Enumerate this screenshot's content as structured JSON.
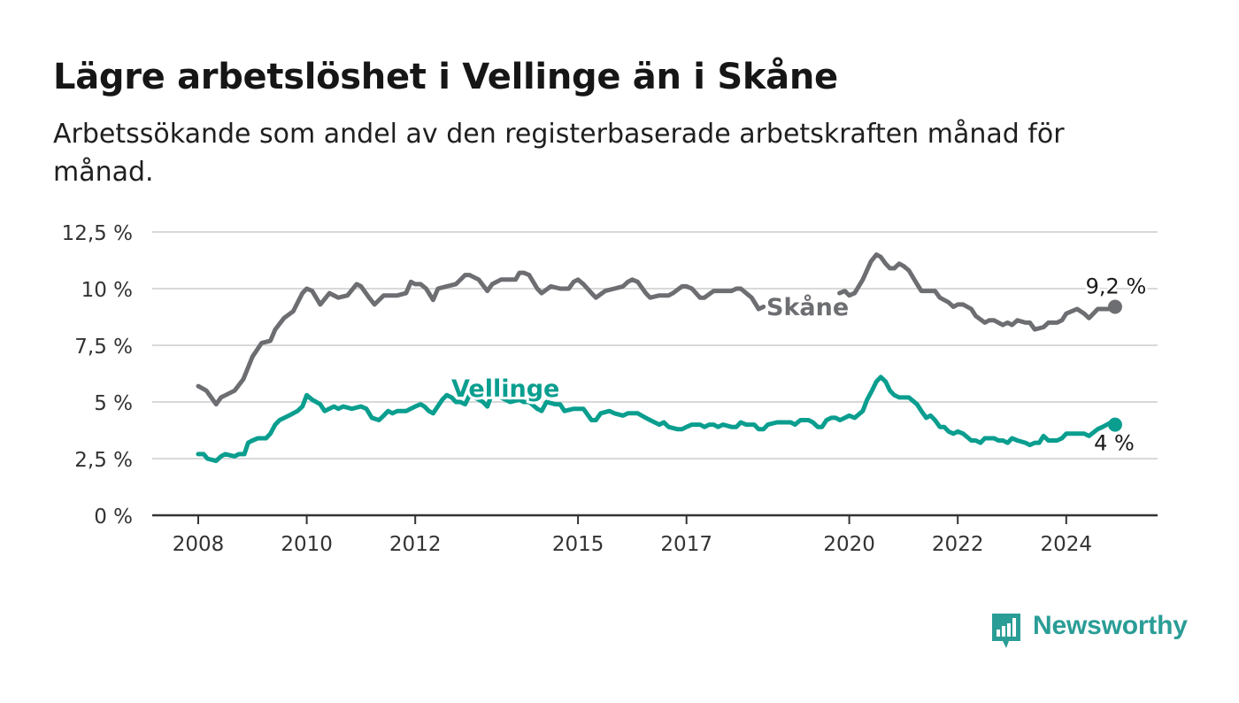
{
  "title": "Lägre arbetslöshet i Vellinge än i Skåne",
  "subtitle": "Arbetssökande som andel av den registerbaserade arbetskraften månad för månad.",
  "brand": {
    "name": "Newsworthy",
    "color": "#2a9d96",
    "icon": "bar-chart-speech-bubble-icon"
  },
  "chart_data": {
    "type": "line",
    "ylim": [
      0,
      12.5
    ],
    "y_ticks": [
      0,
      2.5,
      5,
      7.5,
      10,
      12.5
    ],
    "y_tick_labels": [
      "0 %",
      "2,5 %",
      "5 %",
      "7,5 %",
      "10 %",
      "12,5 %"
    ],
    "xlim": [
      2007.9,
      2025.25
    ],
    "x_ticks": [
      2008,
      2010,
      2012,
      2015,
      2017,
      2020,
      2022,
      2024
    ],
    "x_tick_labels": [
      "2008",
      "2010",
      "2012",
      "2015",
      "2017",
      "2020",
      "2022",
      "2024"
    ],
    "grid": true,
    "series": [
      {
        "name": "Skåne",
        "color": "#6d6e72",
        "end_label": "9,2 %",
        "points": [
          [
            2008.0,
            5.7
          ],
          [
            2008.15,
            5.5
          ],
          [
            2008.33,
            4.9
          ],
          [
            2008.42,
            5.2
          ],
          [
            2008.67,
            5.5
          ],
          [
            2008.83,
            6.0
          ],
          [
            2009.0,
            7.0
          ],
          [
            2009.17,
            7.6
          ],
          [
            2009.33,
            7.7
          ],
          [
            2009.42,
            8.2
          ],
          [
            2009.58,
            8.7
          ],
          [
            2009.75,
            9.0
          ],
          [
            2009.92,
            9.8
          ],
          [
            2010.0,
            10.0
          ],
          [
            2010.1,
            9.9
          ],
          [
            2010.25,
            9.3
          ],
          [
            2010.42,
            9.8
          ],
          [
            2010.58,
            9.6
          ],
          [
            2010.75,
            9.7
          ],
          [
            2010.92,
            10.2
          ],
          [
            2011.0,
            10.1
          ],
          [
            2011.15,
            9.6
          ],
          [
            2011.25,
            9.3
          ],
          [
            2011.42,
            9.7
          ],
          [
            2011.67,
            9.7
          ],
          [
            2011.83,
            9.8
          ],
          [
            2011.92,
            10.3
          ],
          [
            2012.0,
            10.2
          ],
          [
            2012.1,
            10.2
          ],
          [
            2012.2,
            10.0
          ],
          [
            2012.33,
            9.5
          ],
          [
            2012.42,
            10.0
          ],
          [
            2012.58,
            10.1
          ],
          [
            2012.75,
            10.2
          ],
          [
            2012.92,
            10.6
          ],
          [
            2013.0,
            10.6
          ],
          [
            2013.17,
            10.4
          ],
          [
            2013.33,
            9.9
          ],
          [
            2013.42,
            10.2
          ],
          [
            2013.58,
            10.4
          ],
          [
            2013.75,
            10.4
          ],
          [
            2013.85,
            10.4
          ],
          [
            2013.92,
            10.7
          ],
          [
            2014.0,
            10.7
          ],
          [
            2014.1,
            10.6
          ],
          [
            2014.25,
            10.0
          ],
          [
            2014.33,
            9.8
          ],
          [
            2014.5,
            10.1
          ],
          [
            2014.67,
            10.0
          ],
          [
            2014.83,
            10.0
          ],
          [
            2014.92,
            10.3
          ],
          [
            2015.0,
            10.4
          ],
          [
            2015.1,
            10.2
          ],
          [
            2015.25,
            9.8
          ],
          [
            2015.33,
            9.6
          ],
          [
            2015.5,
            9.9
          ],
          [
            2015.67,
            10.0
          ],
          [
            2015.83,
            10.1
          ],
          [
            2015.92,
            10.3
          ],
          [
            2016.0,
            10.4
          ],
          [
            2016.1,
            10.3
          ],
          [
            2016.25,
            9.8
          ],
          [
            2016.33,
            9.6
          ],
          [
            2016.5,
            9.7
          ],
          [
            2016.67,
            9.7
          ],
          [
            2016.75,
            9.8
          ],
          [
            2016.92,
            10.1
          ],
          [
            2017.0,
            10.1
          ],
          [
            2017.1,
            10.0
          ],
          [
            2017.25,
            9.6
          ],
          [
            2017.33,
            9.6
          ],
          [
            2017.5,
            9.9
          ],
          [
            2017.67,
            9.9
          ],
          [
            2017.83,
            9.9
          ],
          [
            2017.92,
            10.0
          ],
          [
            2018.0,
            10.0
          ],
          [
            2018.1,
            9.8
          ],
          [
            2018.2,
            9.6
          ],
          [
            2018.33,
            9.1
          ],
          [
            2018.42,
            9.2
          ],
          null,
          [
            2019.82,
            9.8
          ],
          [
            2019.92,
            9.9
          ],
          [
            2020.0,
            9.7
          ],
          [
            2020.1,
            9.8
          ],
          [
            2020.25,
            10.4
          ],
          [
            2020.4,
            11.2
          ],
          [
            2020.5,
            11.5
          ],
          [
            2020.58,
            11.4
          ],
          [
            2020.67,
            11.1
          ],
          [
            2020.75,
            10.9
          ],
          [
            2020.83,
            10.9
          ],
          [
            2020.92,
            11.1
          ],
          [
            2021.0,
            11.0
          ],
          [
            2021.1,
            10.8
          ],
          [
            2021.25,
            10.2
          ],
          [
            2021.33,
            9.9
          ],
          [
            2021.5,
            9.9
          ],
          [
            2021.58,
            9.9
          ],
          [
            2021.67,
            9.6
          ],
          [
            2021.83,
            9.4
          ],
          [
            2021.92,
            9.2
          ],
          [
            2022.0,
            9.3
          ],
          [
            2022.1,
            9.3
          ],
          [
            2022.25,
            9.1
          ],
          [
            2022.33,
            8.8
          ],
          [
            2022.5,
            8.5
          ],
          [
            2022.58,
            8.6
          ],
          [
            2022.67,
            8.6
          ],
          [
            2022.83,
            8.4
          ],
          [
            2022.92,
            8.5
          ],
          [
            2023.0,
            8.4
          ],
          [
            2023.1,
            8.6
          ],
          [
            2023.25,
            8.5
          ],
          [
            2023.33,
            8.5
          ],
          [
            2023.42,
            8.2
          ],
          [
            2023.58,
            8.3
          ],
          [
            2023.67,
            8.5
          ],
          [
            2023.83,
            8.5
          ],
          [
            2023.92,
            8.6
          ],
          [
            2024.0,
            8.9
          ],
          [
            2024.1,
            9.0
          ],
          [
            2024.2,
            9.1
          ],
          [
            2024.33,
            8.9
          ],
          [
            2024.42,
            8.7
          ],
          [
            2024.58,
            9.1
          ],
          [
            2024.67,
            9.1
          ],
          [
            2024.83,
            9.1
          ],
          [
            2024.9,
            9.2
          ]
        ]
      },
      {
        "name": "Vellinge",
        "color": "#0a9e8f",
        "end_label": "4 %",
        "points": [
          [
            2008.0,
            2.7
          ],
          [
            2008.1,
            2.7
          ],
          [
            2008.17,
            2.5
          ],
          [
            2008.33,
            2.4
          ],
          [
            2008.42,
            2.6
          ],
          [
            2008.5,
            2.7
          ],
          [
            2008.67,
            2.6
          ],
          [
            2008.75,
            2.7
          ],
          [
            2008.85,
            2.7
          ],
          [
            2008.92,
            3.2
          ],
          [
            2009.0,
            3.3
          ],
          [
            2009.1,
            3.4
          ],
          [
            2009.25,
            3.4
          ],
          [
            2009.33,
            3.6
          ],
          [
            2009.42,
            4.0
          ],
          [
            2009.5,
            4.2
          ],
          [
            2009.67,
            4.4
          ],
          [
            2009.83,
            4.6
          ],
          [
            2009.92,
            4.8
          ],
          [
            2010.0,
            5.3
          ],
          [
            2010.1,
            5.1
          ],
          [
            2010.25,
            4.9
          ],
          [
            2010.33,
            4.6
          ],
          [
            2010.5,
            4.8
          ],
          [
            2010.58,
            4.7
          ],
          [
            2010.67,
            4.8
          ],
          [
            2010.83,
            4.7
          ],
          [
            2011.0,
            4.8
          ],
          [
            2011.1,
            4.7
          ],
          [
            2011.2,
            4.3
          ],
          [
            2011.33,
            4.2
          ],
          [
            2011.42,
            4.4
          ],
          [
            2011.5,
            4.6
          ],
          [
            2011.58,
            4.5
          ],
          [
            2011.67,
            4.6
          ],
          [
            2011.83,
            4.6
          ],
          [
            2012.0,
            4.8
          ],
          [
            2012.1,
            4.9
          ],
          [
            2012.17,
            4.8
          ],
          [
            2012.25,
            4.6
          ],
          [
            2012.33,
            4.5
          ],
          [
            2012.5,
            5.1
          ],
          [
            2012.58,
            5.3
          ],
          [
            2012.67,
            5.2
          ],
          [
            2012.75,
            5.0
          ],
          [
            2012.83,
            5.0
          ],
          [
            2012.92,
            4.9
          ],
          [
            2013.0,
            5.3
          ],
          [
            2013.1,
            5.2
          ],
          [
            2013.25,
            5.0
          ],
          [
            2013.33,
            4.8
          ],
          [
            2013.42,
            5.4
          ],
          [
            2013.58,
            5.2
          ],
          [
            2013.75,
            5.0
          ],
          [
            2013.92,
            5.1
          ],
          [
            2014.0,
            5.0
          ],
          [
            2014.1,
            5.0
          ],
          [
            2014.25,
            4.7
          ],
          [
            2014.33,
            4.6
          ],
          [
            2014.42,
            5.0
          ],
          [
            2014.58,
            4.9
          ],
          [
            2014.67,
            4.9
          ],
          [
            2014.75,
            4.6
          ],
          [
            2014.92,
            4.7
          ],
          [
            2015.0,
            4.7
          ],
          [
            2015.1,
            4.7
          ],
          [
            2015.25,
            4.2
          ],
          [
            2015.33,
            4.2
          ],
          [
            2015.42,
            4.5
          ],
          [
            2015.58,
            4.6
          ],
          [
            2015.67,
            4.5
          ],
          [
            2015.83,
            4.4
          ],
          [
            2015.92,
            4.5
          ],
          [
            2016.0,
            4.5
          ],
          [
            2016.1,
            4.5
          ],
          [
            2016.25,
            4.3
          ],
          [
            2016.33,
            4.2
          ],
          [
            2016.5,
            4.0
          ],
          [
            2016.58,
            4.1
          ],
          [
            2016.67,
            3.9
          ],
          [
            2016.83,
            3.8
          ],
          [
            2016.92,
            3.8
          ],
          [
            2017.0,
            3.9
          ],
          [
            2017.1,
            4.0
          ],
          [
            2017.25,
            4.0
          ],
          [
            2017.33,
            3.9
          ],
          [
            2017.42,
            4.0
          ],
          [
            2017.5,
            4.0
          ],
          [
            2017.58,
            3.9
          ],
          [
            2017.67,
            4.0
          ],
          [
            2017.83,
            3.9
          ],
          [
            2017.92,
            3.9
          ],
          [
            2018.0,
            4.1
          ],
          [
            2018.1,
            4.0
          ],
          [
            2018.25,
            4.0
          ],
          [
            2018.33,
            3.8
          ],
          [
            2018.42,
            3.8
          ],
          [
            2018.5,
            4.0
          ],
          [
            2018.67,
            4.1
          ],
          [
            2018.83,
            4.1
          ],
          [
            2018.92,
            4.1
          ],
          [
            2019.0,
            4.0
          ],
          [
            2019.1,
            4.2
          ],
          [
            2019.25,
            4.2
          ],
          [
            2019.33,
            4.1
          ],
          [
            2019.42,
            3.9
          ],
          [
            2019.5,
            3.9
          ],
          [
            2019.58,
            4.2
          ],
          [
            2019.67,
            4.3
          ],
          [
            2019.75,
            4.3
          ],
          [
            2019.83,
            4.2
          ],
          [
            2019.92,
            4.3
          ],
          [
            2020.0,
            4.4
          ],
          [
            2020.1,
            4.3
          ],
          [
            2020.25,
            4.6
          ],
          [
            2020.33,
            5.1
          ],
          [
            2020.42,
            5.5
          ],
          [
            2020.5,
            5.9
          ],
          [
            2020.58,
            6.1
          ],
          [
            2020.67,
            5.9
          ],
          [
            2020.75,
            5.5
          ],
          [
            2020.83,
            5.3
          ],
          [
            2020.92,
            5.2
          ],
          [
            2021.0,
            5.2
          ],
          [
            2021.1,
            5.2
          ],
          [
            2021.25,
            4.9
          ],
          [
            2021.33,
            4.6
          ],
          [
            2021.42,
            4.3
          ],
          [
            2021.5,
            4.4
          ],
          [
            2021.58,
            4.2
          ],
          [
            2021.67,
            3.9
          ],
          [
            2021.75,
            3.9
          ],
          [
            2021.83,
            3.7
          ],
          [
            2021.92,
            3.6
          ],
          [
            2022.0,
            3.7
          ],
          [
            2022.1,
            3.6
          ],
          [
            2022.25,
            3.3
          ],
          [
            2022.33,
            3.3
          ],
          [
            2022.42,
            3.2
          ],
          [
            2022.5,
            3.4
          ],
          [
            2022.67,
            3.4
          ],
          [
            2022.75,
            3.3
          ],
          [
            2022.83,
            3.3
          ],
          [
            2022.92,
            3.2
          ],
          [
            2023.0,
            3.4
          ],
          [
            2023.1,
            3.3
          ],
          [
            2023.25,
            3.2
          ],
          [
            2023.33,
            3.1
          ],
          [
            2023.42,
            3.2
          ],
          [
            2023.5,
            3.2
          ],
          [
            2023.58,
            3.5
          ],
          [
            2023.67,
            3.3
          ],
          [
            2023.83,
            3.3
          ],
          [
            2023.92,
            3.4
          ],
          [
            2024.0,
            3.6
          ],
          [
            2024.1,
            3.6
          ],
          [
            2024.25,
            3.6
          ],
          [
            2024.33,
            3.6
          ],
          [
            2024.42,
            3.5
          ],
          [
            2024.58,
            3.8
          ],
          [
            2024.67,
            3.9
          ],
          [
            2024.75,
            4.0
          ],
          [
            2024.83,
            4.1
          ],
          [
            2024.9,
            4.0
          ]
        ]
      }
    ]
  }
}
